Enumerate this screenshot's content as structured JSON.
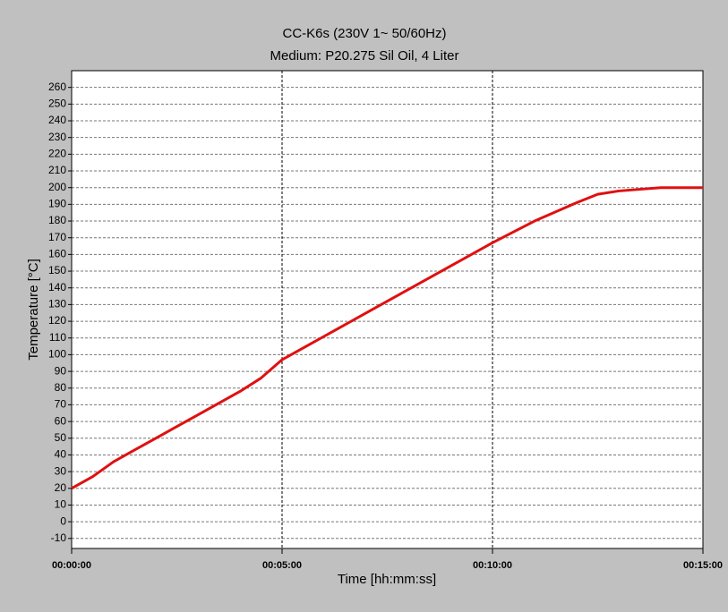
{
  "chart_data": {
    "type": "line",
    "title": "CC-K6s (230V 1~ 50/60Hz)",
    "subtitle": "Medium: P20.275 Sil Oil, 4 Liter",
    "x_label": "Time [hh:mm:ss]",
    "y_label": "Temperature [°C]",
    "x": [
      0,
      30,
      60,
      90,
      120,
      150,
      180,
      210,
      240,
      270,
      300,
      360,
      420,
      480,
      540,
      600,
      660,
      720,
      750,
      780,
      810,
      840,
      900
    ],
    "series": [
      {
        "name": "Temperature",
        "color": "#e01010",
        "values": [
          20,
          27,
          36,
          43,
          50,
          57,
          64,
          71,
          78,
          86,
          97,
          111,
          125,
          139,
          153,
          167,
          180,
          191,
          196,
          198,
          199,
          200,
          200
        ]
      }
    ],
    "xlim": [
      0,
      900
    ],
    "xticks": [
      {
        "value": 0,
        "label": "00:00:00"
      },
      {
        "value": 300,
        "label": "00:05:00"
      },
      {
        "value": 600,
        "label": "00:10:00"
      },
      {
        "value": 900,
        "label": "00:15:00"
      }
    ],
    "ylim": [
      -16,
      270
    ],
    "yticks": [
      -10,
      0,
      10,
      20,
      30,
      40,
      50,
      60,
      70,
      80,
      90,
      100,
      110,
      120,
      130,
      140,
      150,
      160,
      170,
      180,
      190,
      200,
      210,
      220,
      230,
      240,
      250,
      260
    ],
    "grid": true
  }
}
